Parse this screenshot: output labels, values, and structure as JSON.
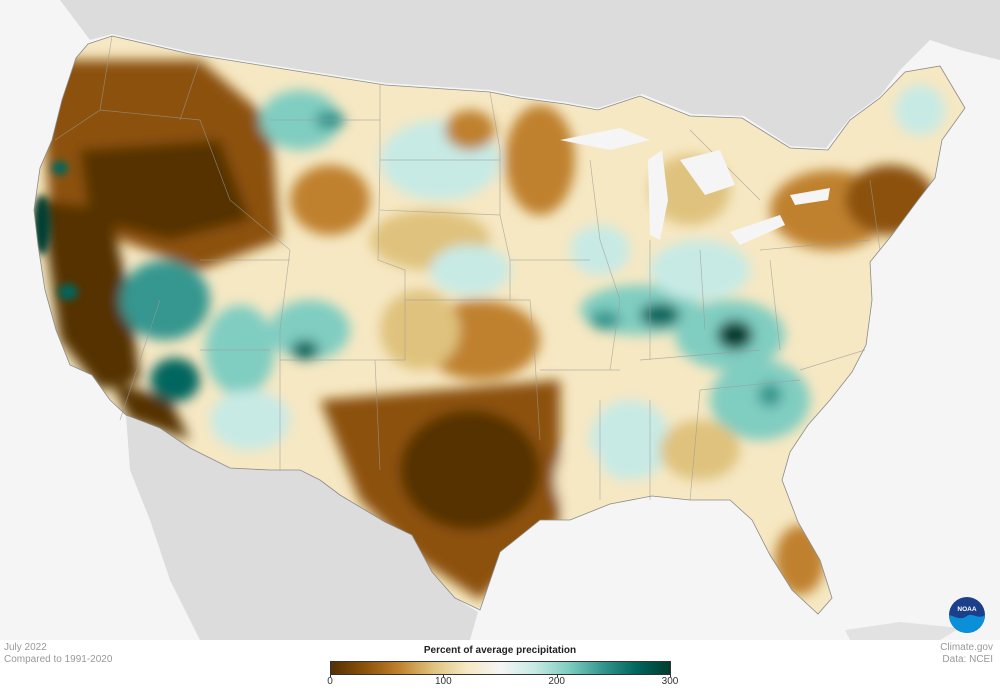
{
  "map": {
    "colors": {
      "ocean": "#f5f5f5",
      "neighbor_land": "#dcdcdc",
      "very_dry": "#543005",
      "dry": "#8c510a",
      "somewhat_dry": "#bf812d",
      "slightly_dry": "#dfc27d",
      "near_normal": "#f6e8c3",
      "normal": "#f5f5f5",
      "slightly_wet": "#c7eae5",
      "wet": "#80cdc1",
      "very_wet": "#35978f",
      "extremely_wet": "#01665e",
      "max_wet": "#003c30"
    }
  },
  "footer": {
    "date": "July 2022",
    "baseline": "Compared to 1991-2020",
    "source": "Climate.gov",
    "data_credit": "Data: NCEI",
    "logo_text": "NOAA"
  },
  "legend": {
    "title": "Percent of average precipitation",
    "ticks": [
      "0",
      "100",
      "200",
      "300"
    ],
    "tick_values": [
      0,
      100,
      200,
      300
    ],
    "min": 0,
    "max": 300,
    "stops": [
      "#543005",
      "#8c510a",
      "#bf812d",
      "#dfc27d",
      "#f6e8c3",
      "#f5f5f5",
      "#c7eae5",
      "#80cdc1",
      "#35978f",
      "#01665e",
      "#003c30"
    ]
  }
}
